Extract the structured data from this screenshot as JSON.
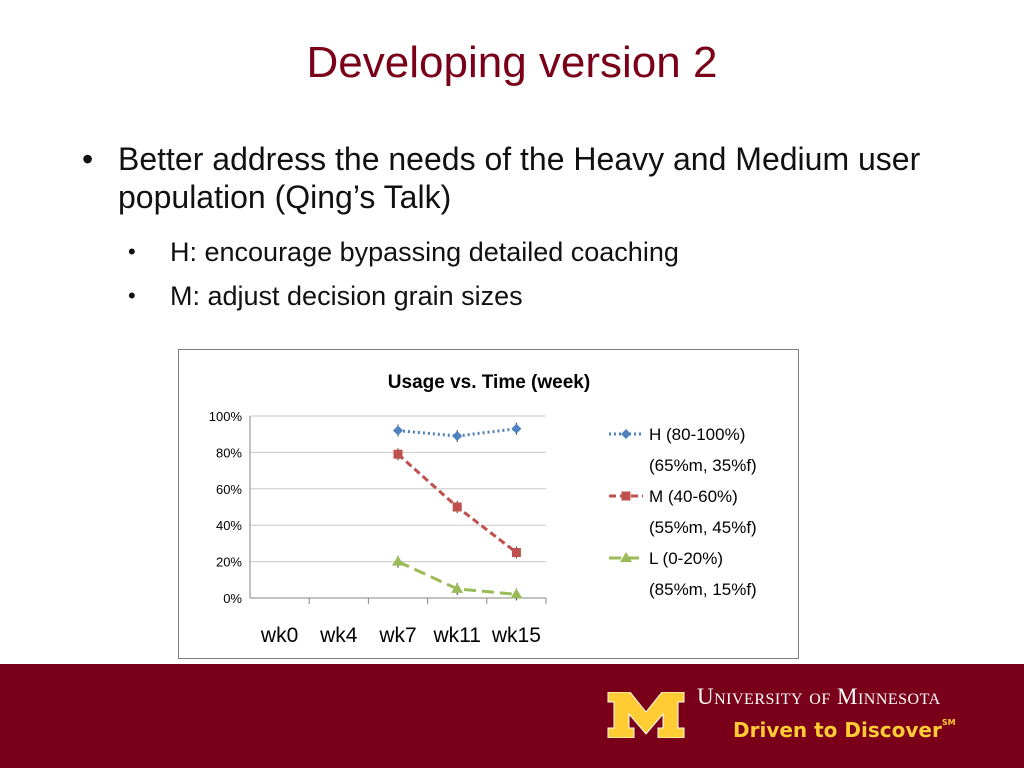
{
  "slide": {
    "title": "Developing version 2",
    "bullets": [
      {
        "text": "Better address the needs of the Heavy and Medium user population (Qing’s Talk)"
      },
      {
        "text": "H: encourage bypassing detailed coaching"
      },
      {
        "text": "M: adjust decision grain sizes"
      }
    ]
  },
  "footer": {
    "university": "University of Minnesota",
    "tagline": "Driven to Discover",
    "tagline_mark": "SM",
    "background": "#7a0019",
    "accent": "#ffcc33"
  },
  "chart_data": {
    "type": "line",
    "title": "Usage vs. Time (week)",
    "categories": [
      "wk0",
      "wk4",
      "wk7",
      "wk11",
      "wk15"
    ],
    "ylim": [
      0,
      100
    ],
    "yticks": [
      "0%",
      "20%",
      "40%",
      "60%",
      "80%",
      "100%"
    ],
    "grid": true,
    "legend_position": "right",
    "series": [
      {
        "name": "H (80-100%)",
        "name_line2": "(65%m, 35%f)",
        "values": [
          null,
          null,
          92,
          89,
          93
        ],
        "color": "#4f81bd",
        "marker": "diamond",
        "dash": "dotted"
      },
      {
        "name": "M (40-60%)",
        "name_line2": "(55%m, 45%f)",
        "values": [
          null,
          null,
          79,
          50,
          25
        ],
        "color": "#c0504d",
        "marker": "square",
        "dash": "dashed"
      },
      {
        "name": "L (0-20%)",
        "name_line2": "(85%m, 15%f)",
        "values": [
          null,
          null,
          20,
          5,
          2
        ],
        "color": "#9bbb59",
        "marker": "triangle",
        "dash": "longdash"
      }
    ]
  }
}
